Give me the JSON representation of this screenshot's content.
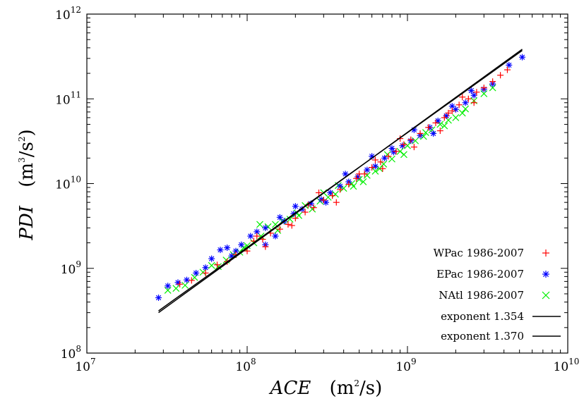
{
  "chart_data": {
    "type": "scatter",
    "xscale": "log",
    "yscale": "log",
    "xlim": [
      10000000.0,
      10000000000.0
    ],
    "ylim": [
      100000000.0,
      1000000000000.0
    ],
    "grid": false,
    "legend_position": "bottom-right",
    "xlabel": {
      "name": "ACE",
      "unit_base": "m",
      "unit_exp": "2",
      "unit_tail": "/s"
    },
    "ylabel": {
      "name": "PDI",
      "unit_base": "m",
      "unit_exp": "3",
      "unit_mid": "/s",
      "unit_exp2": "2"
    },
    "x_ticks": [
      {
        "base": "10",
        "exp": "7",
        "value": 10000000.0
      },
      {
        "base": "10",
        "exp": "8",
        "value": 100000000.0
      },
      {
        "base": "10",
        "exp": "9",
        "value": 1000000000.0
      },
      {
        "base": "10",
        "exp": "10",
        "value": 10000000000.0
      }
    ],
    "y_ticks": [
      {
        "base": "10",
        "exp": "8",
        "value": 100000000.0
      },
      {
        "base": "10",
        "exp": "9",
        "value": 1000000000.0
      },
      {
        "base": "10",
        "exp": "10",
        "value": 10000000000.0
      },
      {
        "base": "10",
        "exp": "11",
        "value": 100000000000.0
      },
      {
        "base": "10",
        "exp": "12",
        "value": 1000000000000.0
      }
    ],
    "series": [
      {
        "name": "WPac 1986-2007",
        "marker": "plus",
        "color": "#ff0000",
        "points": [
          [
            38000000.0,
            650000000.0
          ],
          [
            45000000.0,
            720000000.0
          ],
          [
            55000000.0,
            880000000.0
          ],
          [
            65000000.0,
            1100000000.0
          ],
          [
            75000000.0,
            1200000000.0
          ],
          [
            85000000.0,
            1450000000.0
          ],
          [
            100000000.0,
            1600000000.0
          ],
          [
            110000000.0,
            2100000000.0
          ],
          [
            125000000.0,
            2200000000.0
          ],
          [
            140000000.0,
            2600000000.0
          ],
          [
            160000000.0,
            2900000000.0
          ],
          [
            180000000.0,
            3300000000.0
          ],
          [
            200000000.0,
            3900000000.0
          ],
          [
            230000000.0,
            4600000000.0
          ],
          [
            260000000.0,
            5200000000.0
          ],
          [
            300000000.0,
            6400000000.0
          ],
          [
            340000000.0,
            7200000000.0
          ],
          [
            380000000.0,
            8500000000.0
          ],
          [
            430000000.0,
            9800000000.0
          ],
          [
            480000000.0,
            11500000000.0
          ],
          [
            540000000.0,
            13000000000.0
          ],
          [
            600000000.0,
            15500000000.0
          ],
          [
            680000000.0,
            18000000000.0
          ],
          [
            760000000.0,
            21000000000.0
          ],
          [
            850000000.0,
            24000000000.0
          ],
          [
            950000000.0,
            29000000000.0
          ],
          [
            1050000000.0,
            33000000000.0
          ],
          [
            1200000000.0,
            39000000000.0
          ],
          [
            1350000000.0,
            46000000000.0
          ],
          [
            1500000000.0,
            52000000000.0
          ],
          [
            1700000000.0,
            60000000000.0
          ],
          [
            1900000000.0,
            72000000000.0
          ],
          [
            2100000000.0,
            85000000000.0
          ],
          [
            2400000000.0,
            100000000000.0
          ],
          [
            2700000000.0,
            120000000000.0
          ],
          [
            3000000000.0,
            135000000000.0
          ],
          [
            3400000000.0,
            160000000000.0
          ],
          [
            3800000000.0,
            190000000000.0
          ],
          [
            4200000000.0,
            220000000000.0
          ],
          [
            130000000.0,
            1800000000.0
          ],
          [
            240000000.0,
            5600000000.0
          ],
          [
            360000000.0,
            6000000000.0
          ],
          [
            500000000.0,
            13000000000.0
          ],
          [
            700000000.0,
            15000000000.0
          ],
          [
            900000000.0,
            34000000000.0
          ],
          [
            1600000000.0,
            42000000000.0
          ],
          [
            2200000000.0,
            105000000000.0
          ],
          [
            115000000.0,
            2400000000.0
          ],
          [
            190000000.0,
            3200000000.0
          ],
          [
            280000000.0,
            7800000000.0
          ],
          [
            630000000.0,
            19000000000.0
          ],
          [
            1100000000.0,
            27000000000.0
          ],
          [
            1800000000.0,
            68000000000.0
          ],
          [
            2600000000.0,
            90000000000.0
          ]
        ]
      },
      {
        "name": "EPac 1986-2007",
        "marker": "star",
        "color": "#0000ff",
        "points": [
          [
            28000000.0,
            450000000.0
          ],
          [
            32000000.0,
            620000000.0
          ],
          [
            37000000.0,
            680000000.0
          ],
          [
            42000000.0,
            730000000.0
          ],
          [
            48000000.0,
            880000000.0
          ],
          [
            55000000.0,
            1020000000.0
          ],
          [
            60000000.0,
            1300000000.0
          ],
          [
            68000000.0,
            1650000000.0
          ],
          [
            75000000.0,
            1750000000.0
          ],
          [
            85000000.0,
            1600000000.0
          ],
          [
            92000000.0,
            1900000000.0
          ],
          [
            105000000.0,
            2400000000.0
          ],
          [
            115000000.0,
            2700000000.0
          ],
          [
            130000000.0,
            3000000000.0
          ],
          [
            150000000.0,
            2400000000.0
          ],
          [
            170000000.0,
            3600000000.0
          ],
          [
            195000000.0,
            4400000000.0
          ],
          [
            220000000.0,
            5000000000.0
          ],
          [
            250000000.0,
            5800000000.0
          ],
          [
            290000000.0,
            6500000000.0
          ],
          [
            330000000.0,
            7800000000.0
          ],
          [
            380000000.0,
            9300000000.0
          ],
          [
            430000000.0,
            10500000000.0
          ],
          [
            490000000.0,
            12000000000.0
          ],
          [
            560000000.0,
            14500000000.0
          ],
          [
            630000000.0,
            16000000000.0
          ],
          [
            720000000.0,
            20000000000.0
          ],
          [
            820000000.0,
            23500000000.0
          ],
          [
            930000000.0,
            28000000000.0
          ],
          [
            1050000000.0,
            32000000000.0
          ],
          [
            1200000000.0,
            37000000000.0
          ],
          [
            1380000000.0,
            46000000000.0
          ],
          [
            1550000000.0,
            55000000000.0
          ],
          [
            1750000000.0,
            63000000000.0
          ],
          [
            2000000000.0,
            75000000000.0
          ],
          [
            2300000000.0,
            90000000000.0
          ],
          [
            2600000000.0,
            110000000000.0
          ],
          [
            3000000000.0,
            130000000000.0
          ],
          [
            3400000000.0,
            150000000000.0
          ],
          [
            4300000000.0,
            250000000000.0
          ],
          [
            5200000000.0,
            310000000000.0
          ],
          [
            130000000.0,
            1900000000.0
          ],
          [
            200000000.0,
            5400000000.0
          ],
          [
            410000000.0,
            13000000000.0
          ],
          [
            600000000.0,
            21000000000.0
          ],
          [
            800000000.0,
            26000000000.0
          ],
          [
            1100000000.0,
            43000000000.0
          ],
          [
            1450000000.0,
            39000000000.0
          ],
          [
            1900000000.0,
            82000000000.0
          ],
          [
            2500000000.0,
            125000000000.0
          ],
          [
            80000000.0,
            1400000000.0
          ],
          [
            160000000.0,
            4000000000.0
          ],
          [
            310000000.0,
            6000000000.0
          ]
        ]
      },
      {
        "name": "NAtl 1986-2007",
        "marker": "cross",
        "color": "#00ee00",
        "points": [
          [
            32000000.0,
            550000000.0
          ],
          [
            36000000.0,
            580000000.0
          ],
          [
            41000000.0,
            630000000.0
          ],
          [
            47000000.0,
            780000000.0
          ],
          [
            53000000.0,
            900000000.0
          ],
          [
            60000000.0,
            1080000000.0
          ],
          [
            66000000.0,
            1050000000.0
          ],
          [
            74000000.0,
            1250000000.0
          ],
          [
            82000000.0,
            1450000000.0
          ],
          [
            90000000.0,
            1550000000.0
          ],
          [
            100000000.0,
            1850000000.0
          ],
          [
            110000000.0,
            2000000000.0
          ],
          [
            122000000.0,
            2400000000.0
          ],
          [
            135000000.0,
            3100000000.0
          ],
          [
            150000000.0,
            3300000000.0
          ],
          [
            166000000.0,
            3600000000.0
          ],
          [
            185000000.0,
            3800000000.0
          ],
          [
            205000000.0,
            4500000000.0
          ],
          [
            230000000.0,
            5500000000.0
          ],
          [
            255000000.0,
            5000000000.0
          ],
          [
            285000000.0,
            6200000000.0
          ],
          [
            320000000.0,
            6900000000.0
          ],
          [
            355000000.0,
            7500000000.0
          ],
          [
            400000000.0,
            8800000000.0
          ],
          [
            450000000.0,
            10000000000.0
          ],
          [
            500000000.0,
            11200000000.0
          ],
          [
            560000000.0,
            12500000000.0
          ],
          [
            630000000.0,
            14000000000.0
          ],
          [
            710000000.0,
            17000000000.0
          ],
          [
            800000000.0,
            19500000000.0
          ],
          [
            900000000.0,
            24000000000.0
          ],
          [
            1000000000.0,
            28000000000.0
          ],
          [
            1120000000.0,
            32000000000.0
          ],
          [
            1260000000.0,
            36000000000.0
          ],
          [
            1420000000.0,
            43000000000.0
          ],
          [
            1600000000.0,
            50000000000.0
          ],
          [
            1800000000.0,
            56000000000.0
          ],
          [
            2000000000.0,
            60000000000.0
          ],
          [
            2300000000.0,
            76000000000.0
          ],
          [
            2600000000.0,
            95000000000.0
          ],
          [
            3000000000.0,
            115000000000.0
          ],
          [
            3400000000.0,
            135000000000.0
          ],
          [
            120000000.0,
            3300000000.0
          ],
          [
            210000000.0,
            4200000000.0
          ],
          [
            370000000.0,
            9500000000.0
          ],
          [
            530000000.0,
            10500000000.0
          ],
          [
            750000000.0,
            22000000000.0
          ],
          [
            950000000.0,
            22000000000.0
          ],
          [
            1300000000.0,
            40000000000.0
          ],
          [
            1700000000.0,
            48000000000.0
          ],
          [
            2200000000.0,
            68000000000.0
          ],
          [
            95000000.0,
            1750000000.0
          ],
          [
            155000000.0,
            2800000000.0
          ],
          [
            300000000.0,
            7800000000.0
          ],
          [
            460000000.0,
            9300000000.0
          ],
          [
            670000000.0,
            15000000000.0
          ]
        ]
      }
    ],
    "fit_lines": [
      {
        "name": "exponent 1.354",
        "exponent": 1.354,
        "color": "#000000",
        "x_range": [
          28000000.0,
          5200000000.0
        ],
        "anchor_x": 28000000.0,
        "anchor_y": 315000000.0
      },
      {
        "name": "exponent 1.370",
        "exponent": 1.37,
        "color": "#000000",
        "x_range": [
          28000000.0,
          5200000000.0
        ],
        "anchor_x": 28000000.0,
        "anchor_y": 300000000.0
      }
    ]
  }
}
